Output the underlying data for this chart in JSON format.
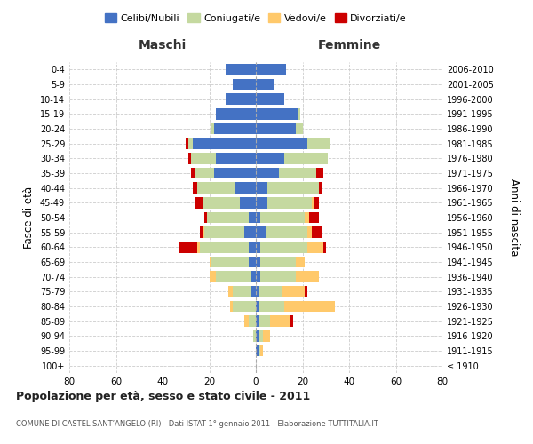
{
  "age_groups": [
    "100+",
    "95-99",
    "90-94",
    "85-89",
    "80-84",
    "75-79",
    "70-74",
    "65-69",
    "60-64",
    "55-59",
    "50-54",
    "45-49",
    "40-44",
    "35-39",
    "30-34",
    "25-29",
    "20-24",
    "15-19",
    "10-14",
    "5-9",
    "0-4"
  ],
  "birth_years": [
    "≤ 1910",
    "1911-1915",
    "1916-1920",
    "1921-1925",
    "1926-1930",
    "1931-1935",
    "1936-1940",
    "1941-1945",
    "1946-1950",
    "1951-1955",
    "1956-1960",
    "1961-1965",
    "1966-1970",
    "1971-1975",
    "1976-1980",
    "1981-1985",
    "1986-1990",
    "1991-1995",
    "1996-2000",
    "2001-2005",
    "2006-2010"
  ],
  "maschi": {
    "celibi": [
      0,
      0,
      0,
      0,
      0,
      2,
      2,
      3,
      3,
      5,
      3,
      7,
      9,
      18,
      17,
      27,
      18,
      17,
      13,
      10,
      13
    ],
    "coniugati": [
      0,
      0,
      1,
      3,
      10,
      8,
      15,
      16,
      21,
      17,
      18,
      16,
      16,
      8,
      11,
      2,
      1,
      0,
      0,
      0,
      0
    ],
    "vedovi": [
      0,
      0,
      0,
      2,
      1,
      2,
      3,
      1,
      1,
      1,
      0,
      0,
      0,
      0,
      0,
      0,
      0,
      0,
      0,
      0,
      0
    ],
    "divorziati": [
      0,
      0,
      0,
      0,
      0,
      0,
      0,
      0,
      8,
      1,
      1,
      3,
      2,
      2,
      1,
      1,
      0,
      0,
      0,
      0,
      0
    ]
  },
  "femmine": {
    "nubili": [
      0,
      1,
      1,
      1,
      1,
      1,
      2,
      2,
      2,
      4,
      2,
      5,
      5,
      10,
      12,
      22,
      17,
      18,
      12,
      8,
      13
    ],
    "coniugate": [
      0,
      1,
      2,
      5,
      11,
      10,
      15,
      15,
      20,
      18,
      19,
      19,
      22,
      16,
      19,
      10,
      3,
      1,
      0,
      0,
      0
    ],
    "vedove": [
      0,
      1,
      3,
      9,
      22,
      10,
      10,
      4,
      7,
      2,
      2,
      1,
      0,
      0,
      0,
      0,
      0,
      0,
      0,
      0,
      0
    ],
    "divorziate": [
      0,
      0,
      0,
      1,
      0,
      1,
      0,
      0,
      1,
      4,
      4,
      2,
      1,
      3,
      0,
      0,
      0,
      0,
      0,
      0,
      0
    ]
  },
  "colors": {
    "celibi": "#4472c4",
    "coniugati": "#c5d9a0",
    "vedovi": "#ffc96b",
    "divorziati": "#cc0000"
  },
  "xlim": 80,
  "title": "Popolazione per età, sesso e stato civile - 2011",
  "subtitle": "COMUNE DI CASTEL SANT’ANGELO (RI) - Dati ISTAT 1° gennaio 2011 - Elaborazione TUTTITALIA.IT",
  "ylabel": "Fasce di età",
  "ylabel_right": "Anni di nascita",
  "legend_labels": [
    "Celibi/Nubili",
    "Coniugati/e",
    "Vedovi/e",
    "Divorziati/e"
  ],
  "maschi_label": "Maschi",
  "femmine_label": "Femmine"
}
